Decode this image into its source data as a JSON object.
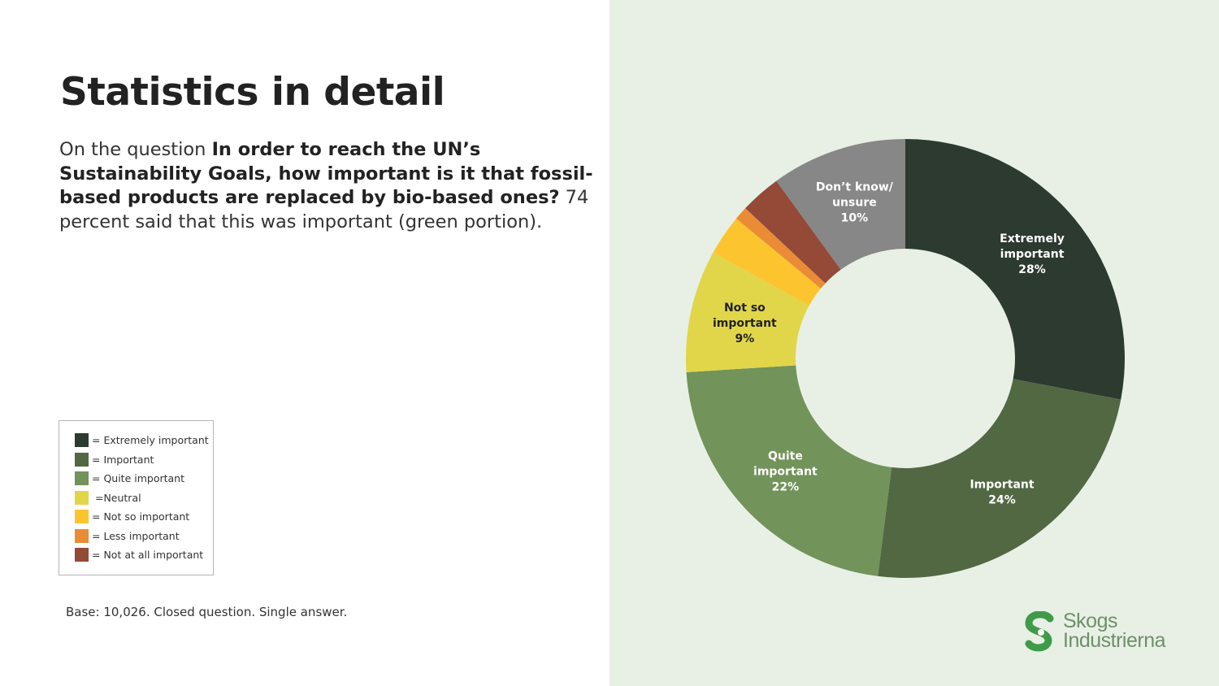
{
  "header": {
    "title": "Statistics in detail"
  },
  "intro": {
    "prefix": "On the question ",
    "question": "In order to reach the UN’s Sustainability Goals, how important is it that fossil-based products are replaced by bio-based ones?",
    "suffix": " 74 percent said that this was important (green portion)."
  },
  "legend": {
    "items": [
      {
        "label": "= Extremely important",
        "color": "#2d3a2f"
      },
      {
        "label": "= Important",
        "color": "#526843"
      },
      {
        "label": "= Quite important",
        "color": "#72935a"
      },
      {
        "label": " =Neutral",
        "color": "#e1d64a"
      },
      {
        "label": "= Not so important",
        "color": "#fcc52f"
      },
      {
        "label": "= Less important",
        "color": "#ea8b36"
      },
      {
        "label": "= Not at all important",
        "color": "#944a36"
      }
    ]
  },
  "footer": {
    "base_note": "Base: 10,026. Closed question. Single answer."
  },
  "logo": {
    "line1": "Skogs",
    "line2": "Industrierna",
    "color": "#3f9b47"
  },
  "colors": {
    "background_left": "#ffffff",
    "background_right": "#e8f0e6"
  },
  "chart_data": {
    "type": "donut",
    "unit": "%",
    "slices": [
      {
        "name": "Extremely important",
        "value": 28,
        "color": "#2d3a2f",
        "label_lines": [
          "Extremely",
          "important",
          "28%"
        ],
        "label_color": "#ffffff"
      },
      {
        "name": "Important",
        "value": 24,
        "color": "#526843",
        "label_lines": [
          "Important",
          "24%"
        ],
        "label_color": "#ffffff"
      },
      {
        "name": "Quite important",
        "value": 22,
        "color": "#72935a",
        "label_lines": [
          "Quite",
          "important",
          "22%"
        ],
        "label_color": "#ffffff"
      },
      {
        "name": "Neutral",
        "value": 0,
        "color": "#e1d64a",
        "label_lines": [],
        "label_color": "#222222"
      },
      {
        "name": "Not so important",
        "value": 9,
        "color": "#e1d64a",
        "label_lines": [
          "Not so",
          "important",
          "9%"
        ],
        "label_color": "#222222"
      },
      {
        "name": "Not so important (yellow)",
        "value": 3,
        "color": "#fcc52f",
        "label_lines": [],
        "label_color": "#222222"
      },
      {
        "name": "Less important",
        "value": 1,
        "color": "#ea8b36",
        "label_lines": [],
        "label_color": "#222222"
      },
      {
        "name": "Not at all important",
        "value": 3,
        "color": "#944a36",
        "label_lines": [],
        "label_color": "#ffffff"
      },
      {
        "name": "Don’t know/ unsure",
        "value": 10,
        "color": "#878787",
        "label_lines": [
          "Don’t know/",
          "unsure",
          "10%"
        ],
        "label_color": "#ffffff"
      }
    ]
  }
}
